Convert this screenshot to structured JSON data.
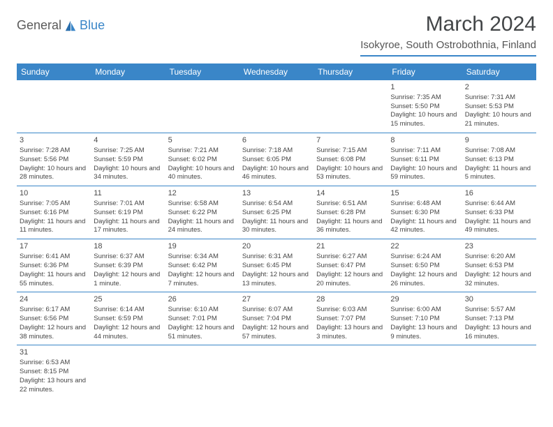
{
  "logo": {
    "part1": "General",
    "part2": "Blue"
  },
  "title": "March 2024",
  "location": "Isokyroe, South Ostrobothnia, Finland",
  "day_headers": [
    "Sunday",
    "Monday",
    "Tuesday",
    "Wednesday",
    "Thursday",
    "Friday",
    "Saturday"
  ],
  "header_bg": "#3a86c8",
  "header_fg": "#ffffff",
  "accent_color": "#3a86c8",
  "text_color": "#434648",
  "weeks": [
    [
      null,
      null,
      null,
      null,
      null,
      {
        "n": "1",
        "sunrise": "7:35 AM",
        "sunset": "5:50 PM",
        "dl": "10 hours and 15 minutes."
      },
      {
        "n": "2",
        "sunrise": "7:31 AM",
        "sunset": "5:53 PM",
        "dl": "10 hours and 21 minutes."
      }
    ],
    [
      {
        "n": "3",
        "sunrise": "7:28 AM",
        "sunset": "5:56 PM",
        "dl": "10 hours and 28 minutes."
      },
      {
        "n": "4",
        "sunrise": "7:25 AM",
        "sunset": "5:59 PM",
        "dl": "10 hours and 34 minutes."
      },
      {
        "n": "5",
        "sunrise": "7:21 AM",
        "sunset": "6:02 PM",
        "dl": "10 hours and 40 minutes."
      },
      {
        "n": "6",
        "sunrise": "7:18 AM",
        "sunset": "6:05 PM",
        "dl": "10 hours and 46 minutes."
      },
      {
        "n": "7",
        "sunrise": "7:15 AM",
        "sunset": "6:08 PM",
        "dl": "10 hours and 53 minutes."
      },
      {
        "n": "8",
        "sunrise": "7:11 AM",
        "sunset": "6:11 PM",
        "dl": "10 hours and 59 minutes."
      },
      {
        "n": "9",
        "sunrise": "7:08 AM",
        "sunset": "6:13 PM",
        "dl": "11 hours and 5 minutes."
      }
    ],
    [
      {
        "n": "10",
        "sunrise": "7:05 AM",
        "sunset": "6:16 PM",
        "dl": "11 hours and 11 minutes."
      },
      {
        "n": "11",
        "sunrise": "7:01 AM",
        "sunset": "6:19 PM",
        "dl": "11 hours and 17 minutes."
      },
      {
        "n": "12",
        "sunrise": "6:58 AM",
        "sunset": "6:22 PM",
        "dl": "11 hours and 24 minutes."
      },
      {
        "n": "13",
        "sunrise": "6:54 AM",
        "sunset": "6:25 PM",
        "dl": "11 hours and 30 minutes."
      },
      {
        "n": "14",
        "sunrise": "6:51 AM",
        "sunset": "6:28 PM",
        "dl": "11 hours and 36 minutes."
      },
      {
        "n": "15",
        "sunrise": "6:48 AM",
        "sunset": "6:30 PM",
        "dl": "11 hours and 42 minutes."
      },
      {
        "n": "16",
        "sunrise": "6:44 AM",
        "sunset": "6:33 PM",
        "dl": "11 hours and 49 minutes."
      }
    ],
    [
      {
        "n": "17",
        "sunrise": "6:41 AM",
        "sunset": "6:36 PM",
        "dl": "11 hours and 55 minutes."
      },
      {
        "n": "18",
        "sunrise": "6:37 AM",
        "sunset": "6:39 PM",
        "dl": "12 hours and 1 minute."
      },
      {
        "n": "19",
        "sunrise": "6:34 AM",
        "sunset": "6:42 PM",
        "dl": "12 hours and 7 minutes."
      },
      {
        "n": "20",
        "sunrise": "6:31 AM",
        "sunset": "6:45 PM",
        "dl": "12 hours and 13 minutes."
      },
      {
        "n": "21",
        "sunrise": "6:27 AM",
        "sunset": "6:47 PM",
        "dl": "12 hours and 20 minutes."
      },
      {
        "n": "22",
        "sunrise": "6:24 AM",
        "sunset": "6:50 PM",
        "dl": "12 hours and 26 minutes."
      },
      {
        "n": "23",
        "sunrise": "6:20 AM",
        "sunset": "6:53 PM",
        "dl": "12 hours and 32 minutes."
      }
    ],
    [
      {
        "n": "24",
        "sunrise": "6:17 AM",
        "sunset": "6:56 PM",
        "dl": "12 hours and 38 minutes."
      },
      {
        "n": "25",
        "sunrise": "6:14 AM",
        "sunset": "6:59 PM",
        "dl": "12 hours and 44 minutes."
      },
      {
        "n": "26",
        "sunrise": "6:10 AM",
        "sunset": "7:01 PM",
        "dl": "12 hours and 51 minutes."
      },
      {
        "n": "27",
        "sunrise": "6:07 AM",
        "sunset": "7:04 PM",
        "dl": "12 hours and 57 minutes."
      },
      {
        "n": "28",
        "sunrise": "6:03 AM",
        "sunset": "7:07 PM",
        "dl": "13 hours and 3 minutes."
      },
      {
        "n": "29",
        "sunrise": "6:00 AM",
        "sunset": "7:10 PM",
        "dl": "13 hours and 9 minutes."
      },
      {
        "n": "30",
        "sunrise": "5:57 AM",
        "sunset": "7:13 PM",
        "dl": "13 hours and 16 minutes."
      }
    ],
    [
      {
        "n": "31",
        "sunrise": "6:53 AM",
        "sunset": "8:15 PM",
        "dl": "13 hours and 22 minutes."
      },
      null,
      null,
      null,
      null,
      null,
      null
    ]
  ],
  "labels": {
    "sunrise": "Sunrise: ",
    "sunset": "Sunset: ",
    "daylight": "Daylight: "
  }
}
